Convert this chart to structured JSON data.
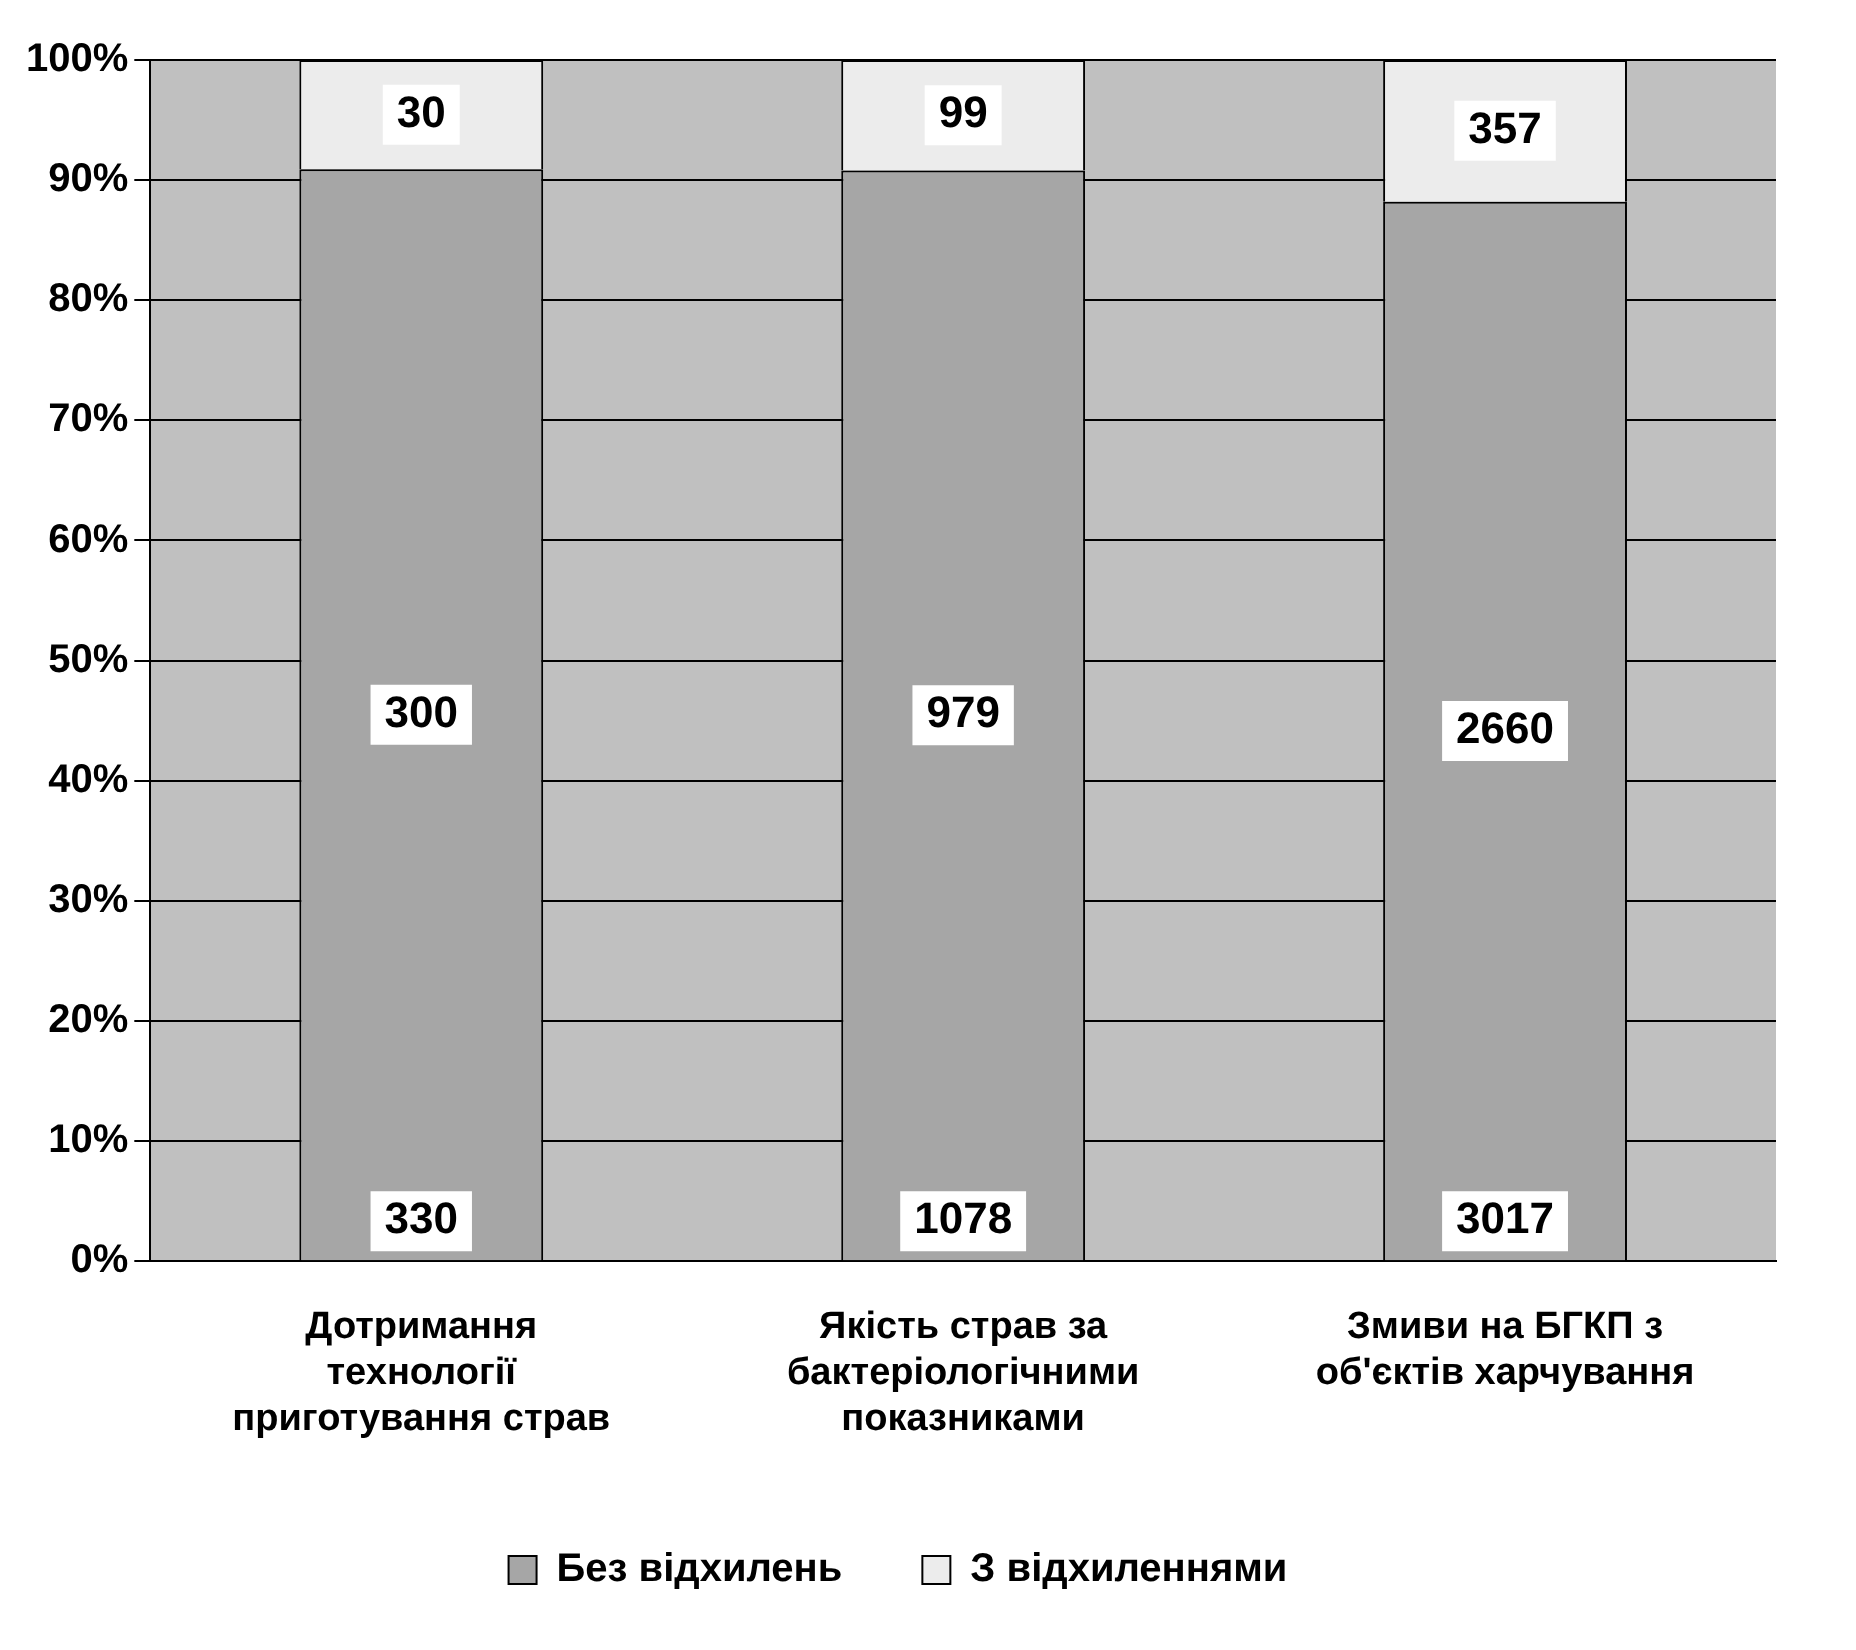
{
  "chart_data": {
    "type": "bar",
    "stacked": true,
    "categories": [
      "Дотримання технології приготування страв",
      "Якість страв за бактеріологічними показниками",
      "Змиви на БГКП з об'єктів харчування"
    ],
    "series": [
      {
        "name": "Без відхилень",
        "color": "#a6a6a6",
        "values": [
          90.9,
          90.8,
          88.2
        ]
      },
      {
        "name": "З відхиленнями",
        "color": "#ececec",
        "values": [
          9.1,
          9.2,
          11.8
        ]
      }
    ],
    "annotations": [
      "300",
      "979",
      "2660",
      "30",
      "99",
      "357",
      "330",
      "1078",
      "3017"
    ],
    "ylim": [
      0,
      100
    ],
    "yticks": [
      {
        "value": 0,
        "label": "0%"
      },
      {
        "value": 10,
        "label": "10%"
      },
      {
        "value": 20,
        "label": "20%"
      },
      {
        "value": 30,
        "label": "30%"
      },
      {
        "value": 40,
        "label": "40%"
      },
      {
        "value": 50,
        "label": "50%"
      },
      {
        "value": 60,
        "label": "60%"
      },
      {
        "value": 70,
        "label": "70%"
      },
      {
        "value": 80,
        "label": "80%"
      },
      {
        "value": 90,
        "label": "90%"
      },
      {
        "value": 100,
        "label": "100%"
      }
    ],
    "grid": "y",
    "legend": "bottom"
  }
}
